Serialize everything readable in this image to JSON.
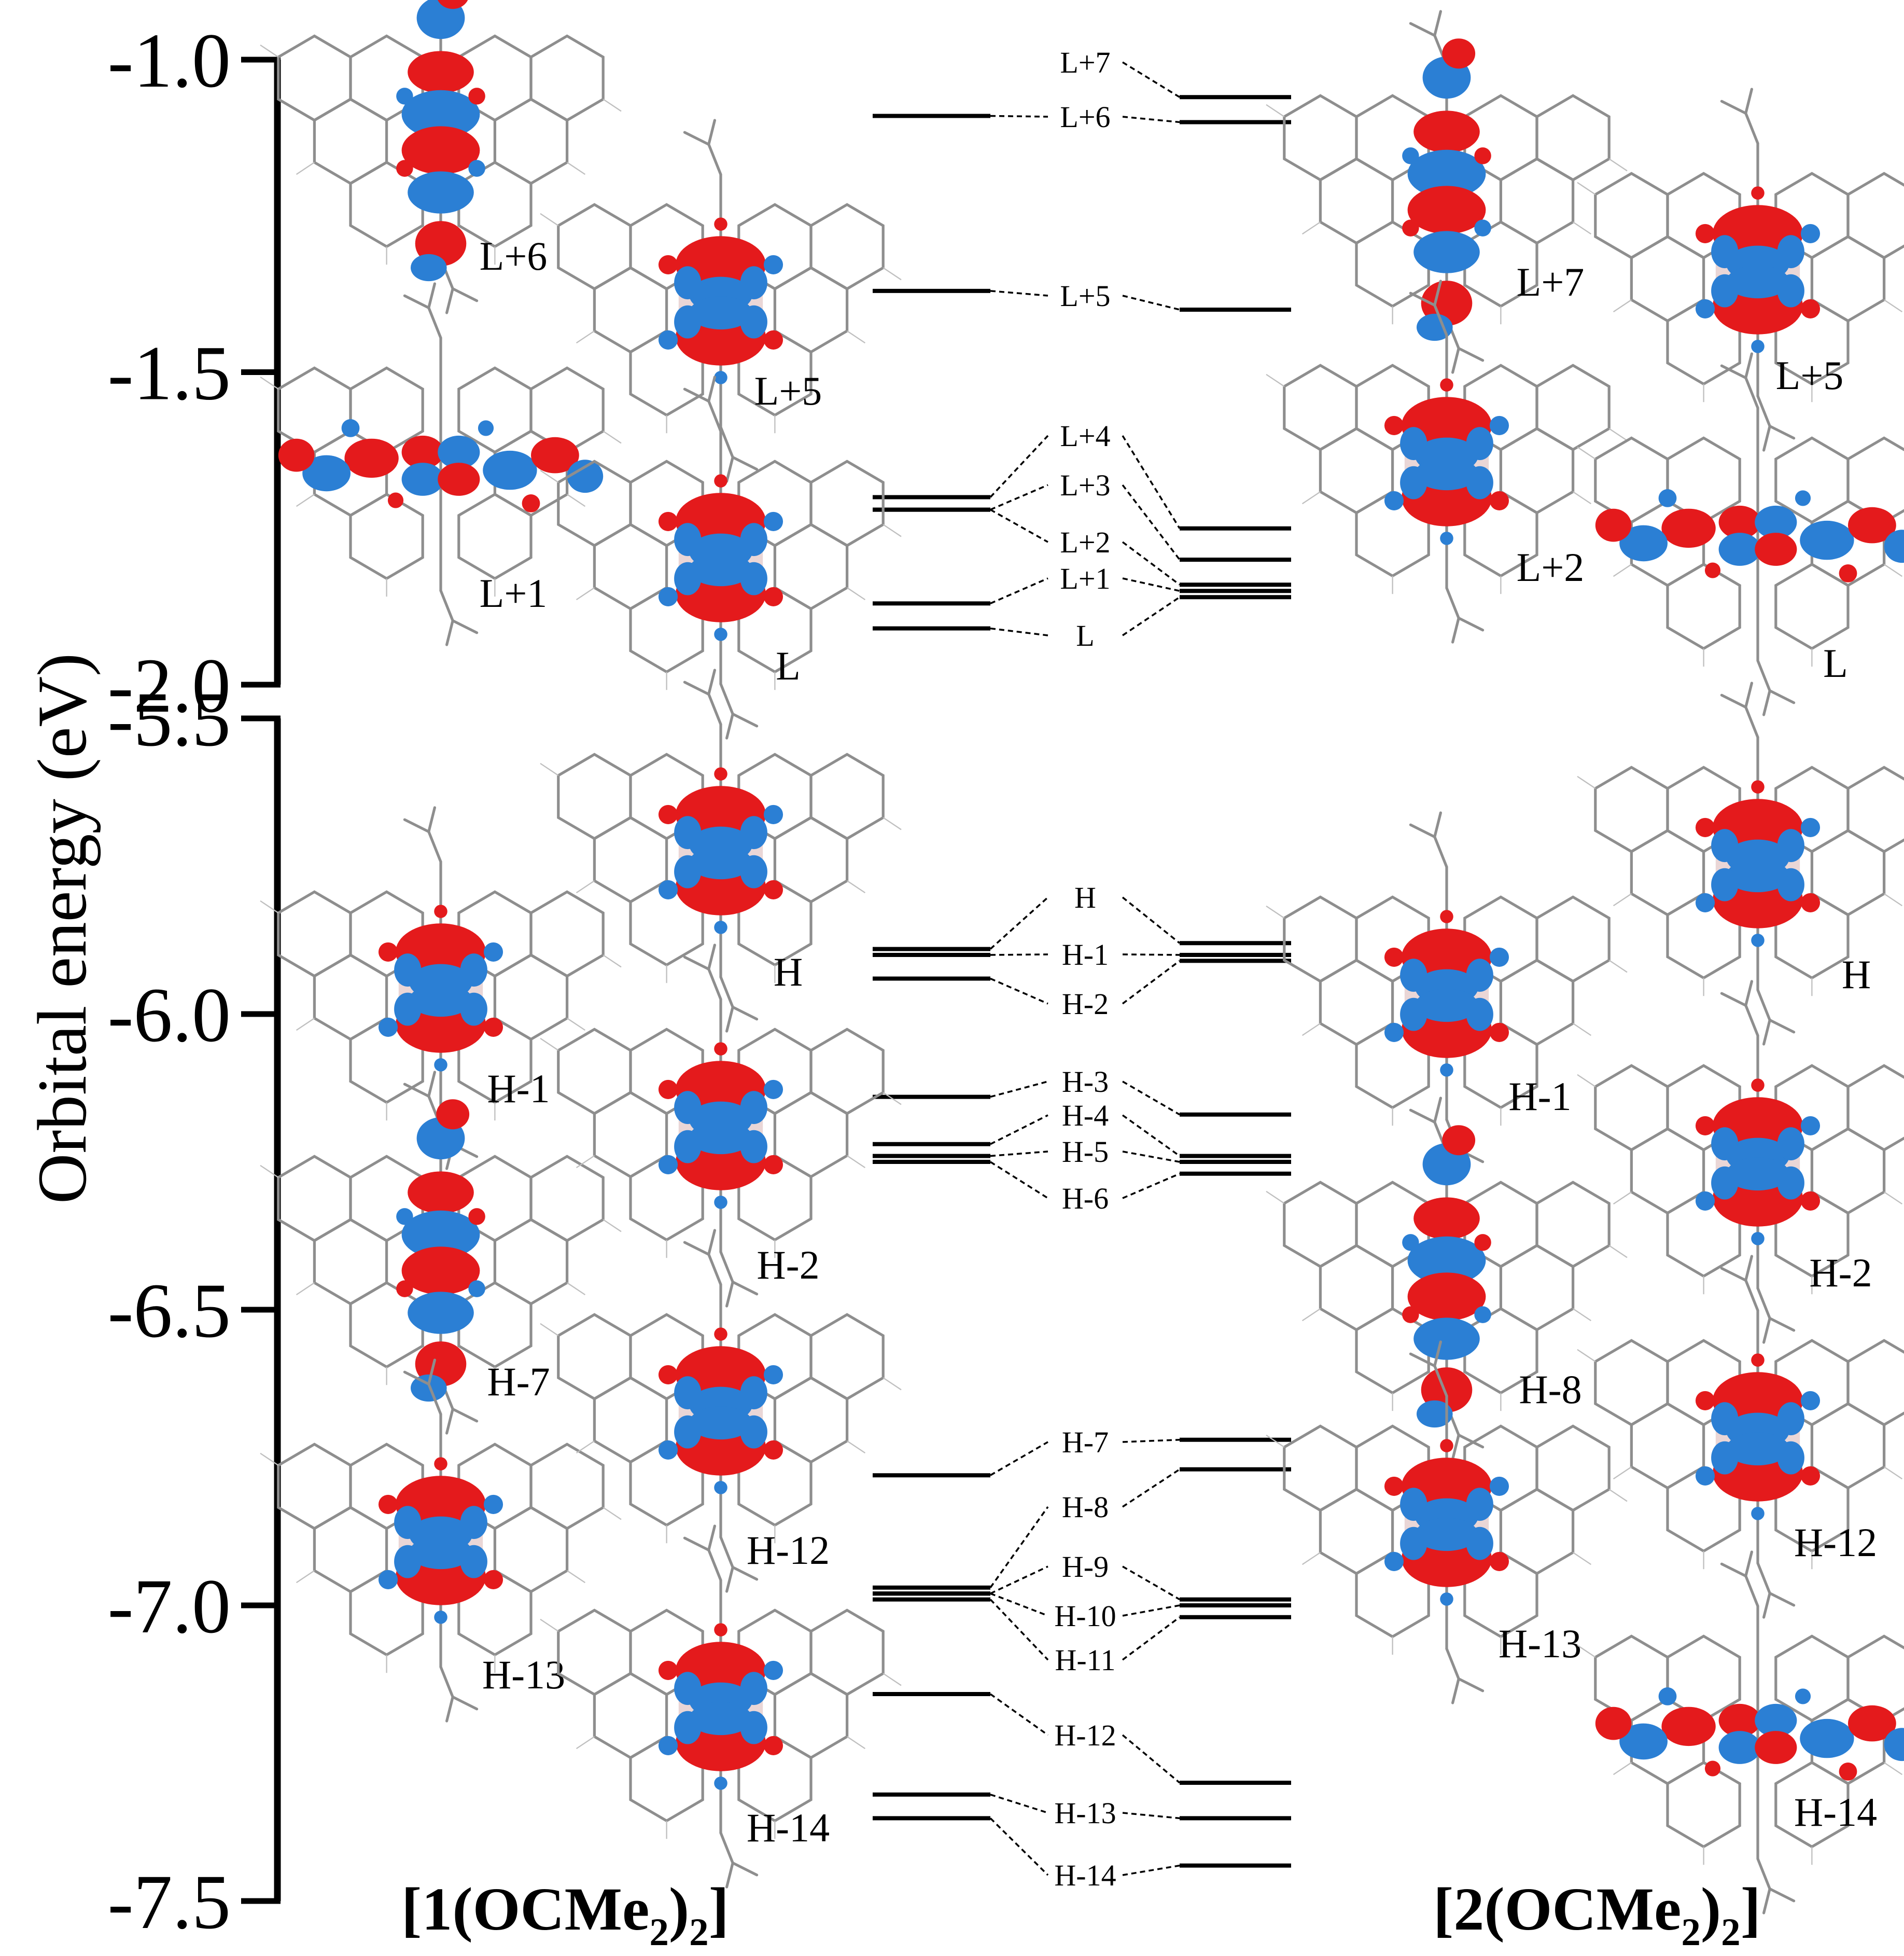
{
  "axis": {
    "ylabel": "Orbital energy (eV)",
    "upper_ticks": [
      "-1.0",
      "-1.5",
      "-2.0"
    ],
    "lower_ticks": [
      "-5.5",
      "-6.0",
      "-6.5",
      "-7.0",
      "-7.5"
    ]
  },
  "compounds": {
    "left": {
      "bracket_open": "[",
      "num": "1",
      "group": "(OCMe",
      "sub2": "2",
      "close": ")",
      "outer_sub": "2",
      "bracket_close": "]"
    },
    "right": {
      "bracket_open": "[",
      "num": "2",
      "group": "(OCMe",
      "sub2": "2",
      "close": ")",
      "outer_sub": "2",
      "bracket_close": "]"
    }
  },
  "colors": {
    "lobe_positive": "#e41a1c",
    "lobe_negative": "#2b7fd4",
    "frame": "#8e8e8e",
    "axis": "#000000"
  },
  "chart_data": {
    "type": "energy-level-diagram",
    "unit": "eV",
    "yranges": {
      "upper": [
        -2.0,
        -1.0
      ],
      "lower": [
        -7.5,
        -5.5
      ]
    },
    "levels": [
      {
        "label": "L+7",
        "left": null,
        "right": -1.06
      },
      {
        "label": "L+6",
        "left": -1.09,
        "right": -1.1
      },
      {
        "label": "L+5",
        "left": -1.37,
        "right": -1.4
      },
      {
        "label": "L+4",
        "left": -1.7,
        "right": -1.75
      },
      {
        "label": "L+3",
        "left": -1.72,
        "right": -1.8
      },
      {
        "label": "L+2",
        "left": -1.72,
        "right": -1.84
      },
      {
        "label": "L+1",
        "left": -1.87,
        "right": -1.85
      },
      {
        "label": "L",
        "left": -1.91,
        "right": -1.86
      },
      {
        "label": "H",
        "left": -5.89,
        "right": -5.88
      },
      {
        "label": "H-1",
        "left": -5.9,
        "right": -5.9
      },
      {
        "label": "H-2",
        "left": -5.94,
        "right": -5.91
      },
      {
        "label": "H-3",
        "left": -6.14,
        "right": -6.17
      },
      {
        "label": "H-4",
        "left": -6.22,
        "right": -6.24
      },
      {
        "label": "H-5",
        "left": -6.24,
        "right": -6.25
      },
      {
        "label": "H-6",
        "left": -6.25,
        "right": -6.27
      },
      {
        "label": "H-7",
        "left": -6.78,
        "right": -6.72
      },
      {
        "label": "H-8",
        "left": -6.97,
        "right": -6.77
      },
      {
        "label": "H-9",
        "left": -6.98,
        "right": -6.99
      },
      {
        "label": "H-10",
        "left": -6.98,
        "right": -7.0
      },
      {
        "label": "H-11",
        "left": -6.99,
        "right": -7.02
      },
      {
        "label": "H-12",
        "left": -7.15,
        "right": -7.3
      },
      {
        "label": "H-13",
        "left": -7.32,
        "right": -7.36
      },
      {
        "label": "H-14",
        "left": -7.36,
        "right": -7.44
      }
    ]
  },
  "mo_panels": [
    {
      "caption": "L+6",
      "lobes": "axial"
    },
    {
      "caption": "L+5",
      "lobes": "compact"
    },
    {
      "caption": "L+1",
      "lobes": "spread"
    },
    {
      "caption": "L",
      "lobes": "compact"
    },
    {
      "caption": "H-1",
      "lobes": "compact"
    },
    {
      "caption": "H",
      "lobes": "compact"
    },
    {
      "caption": "H-7",
      "lobes": "axial"
    },
    {
      "caption": "H-2",
      "lobes": "compact"
    },
    {
      "caption": "H-13",
      "lobes": "compact"
    },
    {
      "caption": "H-12",
      "lobes": "compact"
    },
    {
      "caption": "H-14",
      "lobes": "compact"
    },
    {
      "caption": "L+7",
      "lobes": "axial"
    },
    {
      "caption": "L+5",
      "lobes": "compact"
    },
    {
      "caption": "L+2",
      "lobes": "compact"
    },
    {
      "caption": "L",
      "lobes": "spread"
    },
    {
      "caption": "H",
      "lobes": "compact"
    },
    {
      "caption": "H-1",
      "lobes": "compact"
    },
    {
      "caption": "H-2",
      "lobes": "compact"
    },
    {
      "caption": "H-8",
      "lobes": "axial"
    },
    {
      "caption": "H-12",
      "lobes": "compact"
    },
    {
      "caption": "H-13",
      "lobes": "compact"
    },
    {
      "caption": "H-14",
      "lobes": "spread"
    }
  ]
}
